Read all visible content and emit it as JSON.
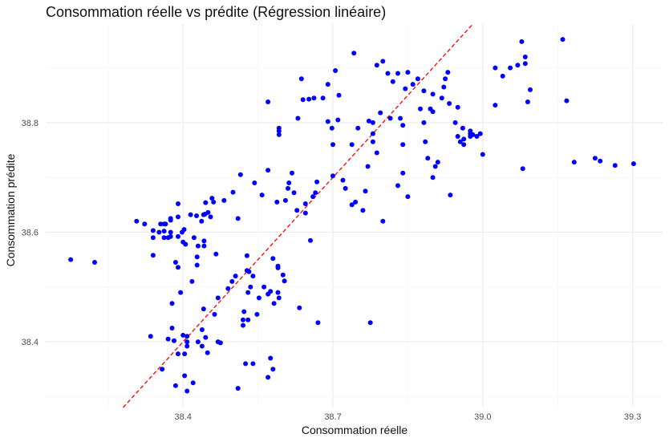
{
  "chart_data": {
    "type": "scatter",
    "title": "Consommation réelle vs prédite (Régression linéaire)",
    "xlabel": "Consommation réelle",
    "ylabel": "Consommation prédite",
    "xlim": [
      38.125,
      39.36
    ],
    "ylim": [
      38.28,
      38.98
    ],
    "xticks": [
      38.4,
      38.7,
      39.0,
      39.3
    ],
    "xtick_labels": [
      "38.4",
      "38.7",
      "39.0",
      "39.3"
    ],
    "yticks": [
      38.4,
      38.6,
      38.8
    ],
    "ytick_labels": [
      "38.4",
      "38.6",
      "38.8"
    ],
    "grid": true,
    "point_color": "#0000ff",
    "reference_line": {
      "type": "identity",
      "style": "dashed",
      "color": "#ff0000"
    },
    "series": [
      {
        "points": [
          [
            38.175,
            38.55
          ],
          [
            38.223,
            38.545
          ],
          [
            38.307,
            38.62
          ],
          [
            38.323,
            38.615
          ],
          [
            38.335,
            38.41
          ],
          [
            38.34,
            38.603
          ],
          [
            38.34,
            38.59
          ],
          [
            38.34,
            38.558
          ],
          [
            38.352,
            38.6
          ],
          [
            38.355,
            38.615
          ],
          [
            38.358,
            38.35
          ],
          [
            38.362,
            38.615
          ],
          [
            38.362,
            38.602
          ],
          [
            38.362,
            38.59
          ],
          [
            38.365,
            38.615
          ],
          [
            38.37,
            38.59
          ],
          [
            38.37,
            38.405
          ],
          [
            38.375,
            38.622
          ],
          [
            38.375,
            38.625
          ],
          [
            38.375,
            38.6
          ],
          [
            38.375,
            38.592
          ],
          [
            38.378,
            38.425
          ],
          [
            38.378,
            38.47
          ],
          [
            38.382,
            38.402
          ],
          [
            38.385,
            38.32
          ],
          [
            38.385,
            38.545
          ],
          [
            38.39,
            38.652
          ],
          [
            38.39,
            38.628
          ],
          [
            38.39,
            38.592
          ],
          [
            38.39,
            38.536
          ],
          [
            38.39,
            38.378
          ],
          [
            38.395,
            38.49
          ],
          [
            38.398,
            38.6
          ],
          [
            38.4,
            38.412
          ],
          [
            38.4,
            38.582
          ],
          [
            38.402,
            38.605
          ],
          [
            38.403,
            38.378
          ],
          [
            38.403,
            38.338
          ],
          [
            38.405,
            38.578
          ],
          [
            38.408,
            38.41
          ],
          [
            38.408,
            38.4
          ],
          [
            38.408,
            38.392
          ],
          [
            38.408,
            38.31
          ],
          [
            38.415,
            38.632
          ],
          [
            38.418,
            38.51
          ],
          [
            38.42,
            38.325
          ],
          [
            38.422,
            38.59
          ],
          [
            38.427,
            38.63
          ],
          [
            38.428,
            38.555
          ],
          [
            38.428,
            38.54
          ],
          [
            38.43,
            38.575
          ],
          [
            38.43,
            38.4
          ],
          [
            38.437,
            38.62
          ],
          [
            38.438,
            38.392
          ],
          [
            38.438,
            38.422
          ],
          [
            38.441,
            38.632
          ],
          [
            38.441,
            38.46
          ],
          [
            38.442,
            38.584
          ],
          [
            38.442,
            38.575
          ],
          [
            38.444,
            38.633
          ],
          [
            38.445,
            38.654
          ],
          [
            38.445,
            38.408
          ],
          [
            38.449,
            38.38
          ],
          [
            38.45,
            38.636
          ],
          [
            38.455,
            38.628
          ],
          [
            38.458,
            38.662
          ],
          [
            38.461,
            38.655
          ],
          [
            38.463,
            38.45
          ],
          [
            38.466,
            38.56
          ],
          [
            38.47,
            38.4
          ],
          [
            38.47,
            38.48
          ],
          [
            38.475,
            38.398
          ],
          [
            38.482,
            38.658
          ],
          [
            38.49,
            38.497
          ],
          [
            38.498,
            38.51
          ],
          [
            38.5,
            38.673
          ],
          [
            38.505,
            38.52
          ],
          [
            38.51,
            38.625
          ],
          [
            38.51,
            38.315
          ],
          [
            38.515,
            38.705
          ],
          [
            38.52,
            38.44
          ],
          [
            38.52,
            38.43
          ],
          [
            38.522,
            38.455
          ],
          [
            38.525,
            38.36
          ],
          [
            38.528,
            38.557
          ],
          [
            38.528,
            38.53
          ],
          [
            38.53,
            38.49
          ],
          [
            38.53,
            38.44
          ],
          [
            38.532,
            38.528
          ],
          [
            38.535,
            38.5
          ],
          [
            38.54,
            38.52
          ],
          [
            38.54,
            38.36
          ],
          [
            38.543,
            38.69
          ],
          [
            38.548,
            38.45
          ],
          [
            38.552,
            38.48
          ],
          [
            38.558,
            38.668
          ],
          [
            38.562,
            38.5
          ],
          [
            38.57,
            38.487
          ],
          [
            38.57,
            38.335
          ],
          [
            38.57,
            38.713
          ],
          [
            38.57,
            38.838
          ],
          [
            38.575,
            38.37
          ],
          [
            38.575,
            38.492
          ],
          [
            38.58,
            38.35
          ],
          [
            38.58,
            38.552
          ],
          [
            38.582,
            38.47
          ],
          [
            38.588,
            38.655
          ],
          [
            38.59,
            38.538
          ],
          [
            38.59,
            38.535
          ],
          [
            38.59,
            38.49
          ],
          [
            38.592,
            38.48
          ],
          [
            38.592,
            38.79
          ],
          [
            38.592,
            38.785
          ],
          [
            38.592,
            38.778
          ],
          [
            38.6,
            38.522
          ],
          [
            38.603,
            38.511
          ],
          [
            38.605,
            38.658
          ],
          [
            38.61,
            38.68
          ],
          [
            38.612,
            38.69
          ],
          [
            38.618,
            38.708
          ],
          [
            38.622,
            38.672
          ],
          [
            38.628,
            38.64
          ],
          [
            38.63,
            38.808
          ],
          [
            38.633,
            38.462
          ],
          [
            38.637,
            38.88
          ],
          [
            38.64,
            38.842
          ],
          [
            38.645,
            38.635
          ],
          [
            38.645,
            38.652
          ],
          [
            38.652,
            38.843
          ],
          [
            38.655,
            38.585
          ],
          [
            38.66,
            38.665
          ],
          [
            38.662,
            38.845
          ],
          [
            38.665,
            38.672
          ],
          [
            38.668,
            38.692
          ],
          [
            38.67,
            38.435
          ],
          [
            38.68,
            38.845
          ],
          [
            38.69,
            38.87
          ],
          [
            38.69,
            38.802
          ],
          [
            38.698,
            38.79
          ],
          [
            38.7,
            38.76
          ],
          [
            38.7,
            38.703
          ],
          [
            38.705,
            38.895
          ],
          [
            38.71,
            38.805
          ],
          [
            38.712,
            38.85
          ],
          [
            38.72,
            38.695
          ],
          [
            38.725,
            38.68
          ],
          [
            38.738,
            38.76
          ],
          [
            38.738,
            38.65
          ],
          [
            38.742,
            38.927
          ],
          [
            38.745,
            38.655
          ],
          [
            38.75,
            38.79
          ],
          [
            38.76,
            38.64
          ],
          [
            38.765,
            38.675
          ],
          [
            38.77,
            38.72
          ],
          [
            38.772,
            38.803
          ],
          [
            38.775,
            38.435
          ],
          [
            38.78,
            38.8
          ],
          [
            38.78,
            38.78
          ],
          [
            38.78,
            38.765
          ],
          [
            38.788,
            38.745
          ],
          [
            38.788,
            38.905
          ],
          [
            38.795,
            38.818
          ],
          [
            38.8,
            38.62
          ],
          [
            38.8,
            38.912
          ],
          [
            38.81,
            38.89
          ],
          [
            38.815,
            38.808
          ],
          [
            38.82,
            38.875
          ],
          [
            38.83,
            38.685
          ],
          [
            38.83,
            38.89
          ],
          [
            38.835,
            38.808
          ],
          [
            38.84,
            38.708
          ],
          [
            38.84,
            38.795
          ],
          [
            38.84,
            38.76
          ],
          [
            38.845,
            38.862
          ],
          [
            38.85,
            38.892
          ],
          [
            38.85,
            38.665
          ],
          [
            38.86,
            38.87
          ],
          [
            38.87,
            38.88
          ],
          [
            38.875,
            38.825
          ],
          [
            38.882,
            38.858
          ],
          [
            38.882,
            38.8
          ],
          [
            38.885,
            38.765
          ],
          [
            38.89,
            38.735
          ],
          [
            38.895,
            38.825
          ],
          [
            38.9,
            38.82
          ],
          [
            38.9,
            38.852
          ],
          [
            38.9,
            38.7
          ],
          [
            38.905,
            38.72
          ],
          [
            38.91,
            38.728
          ],
          [
            38.918,
            38.845
          ],
          [
            38.922,
            38.865
          ],
          [
            38.925,
            38.88
          ],
          [
            38.93,
            38.892
          ],
          [
            38.933,
            38.835
          ],
          [
            38.935,
            38.668
          ],
          [
            38.945,
            38.8
          ],
          [
            38.95,
            38.828
          ],
          [
            38.95,
            38.775
          ],
          [
            38.955,
            38.765
          ],
          [
            38.96,
            38.79
          ],
          [
            38.962,
            38.77
          ],
          [
            38.962,
            38.76
          ],
          [
            38.975,
            38.785
          ],
          [
            38.975,
            38.775
          ],
          [
            38.975,
            38.78
          ],
          [
            38.98,
            38.778
          ],
          [
            38.988,
            38.775
          ],
          [
            38.995,
            38.78
          ],
          [
            39.0,
            38.742
          ],
          [
            39.025,
            38.9
          ],
          [
            39.025,
            38.832
          ],
          [
            39.04,
            38.885
          ],
          [
            39.055,
            38.9
          ],
          [
            39.07,
            38.905
          ],
          [
            39.078,
            38.948
          ],
          [
            39.085,
            38.92
          ],
          [
            39.085,
            38.908
          ],
          [
            39.09,
            38.838
          ],
          [
            39.095,
            38.86
          ],
          [
            39.08,
            38.716
          ],
          [
            39.16,
            38.952
          ],
          [
            39.168,
            38.84
          ],
          [
            39.183,
            38.728
          ],
          [
            39.225,
            38.735
          ],
          [
            39.235,
            38.73
          ],
          [
            39.265,
            38.722
          ],
          [
            39.302,
            38.725
          ]
        ]
      }
    ]
  }
}
